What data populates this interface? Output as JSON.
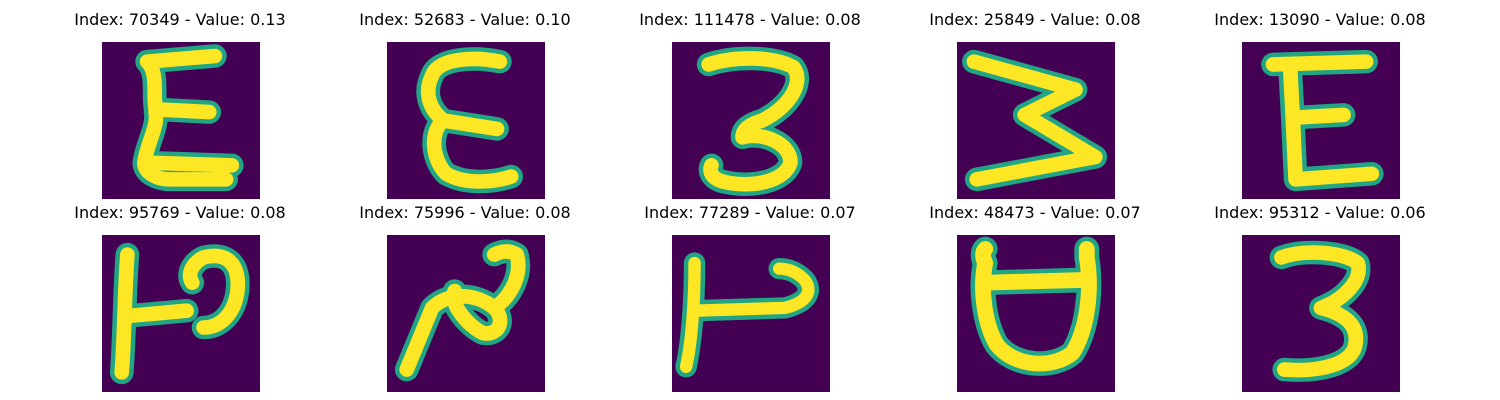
{
  "panels": [
    {
      "title": "Index: 70349 - Value: 0.13",
      "glyph": "letter-e-like-digit-icon"
    },
    {
      "title": "Index: 52683 - Value: 0.10",
      "glyph": "epsilon-like-digit-icon"
    },
    {
      "title": "Index: 111478 - Value: 0.08",
      "glyph": "digit-3-icon"
    },
    {
      "title": "Index: 25849 - Value: 0.08",
      "glyph": "letter-w-like-digit-icon"
    },
    {
      "title": "Index: 13090 - Value: 0.08",
      "glyph": "letter-e-like-digit-icon"
    },
    {
      "title": "Index: 95769 - Value: 0.08",
      "glyph": "rotated-p-like-digit-icon"
    },
    {
      "title": "Index: 75996 - Value: 0.08",
      "glyph": "rotated-n-like-digit-icon"
    },
    {
      "title": "Index: 77289 - Value: 0.07",
      "glyph": "rotated-p-like-digit-icon"
    },
    {
      "title": "Index: 48473 - Value: 0.07",
      "glyph": "rotated-a-like-digit-icon"
    },
    {
      "title": "Index: 95312 - Value: 0.06",
      "glyph": "digit-3-icon"
    }
  ],
  "colors": {
    "background": "#440154",
    "stroke_edge": "#21a585",
    "stroke_core": "#fde725"
  }
}
